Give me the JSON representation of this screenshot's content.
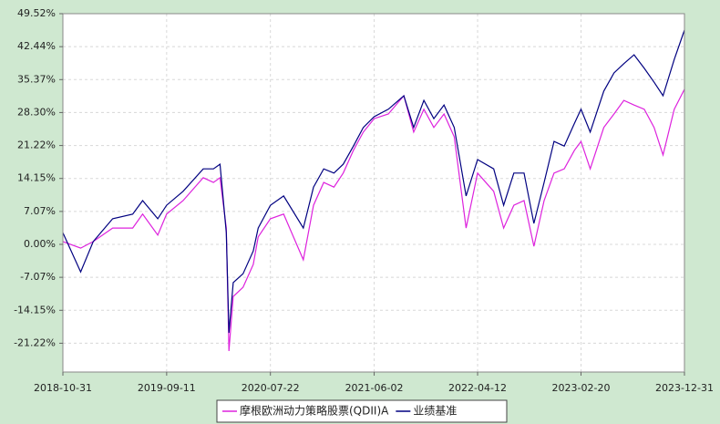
{
  "chart_data": {
    "type": "line",
    "x": [
      "2018-10-31",
      "2018-12-24",
      "2019-01-31",
      "2019-03-31",
      "2019-05-31",
      "2019-06-30",
      "2019-08-15",
      "2019-09-11",
      "2019-10-31",
      "2019-12-31",
      "2020-01-31",
      "2020-02-20",
      "2020-03-10",
      "2020-03-18",
      "2020-03-31",
      "2020-04-30",
      "2020-05-31",
      "2020-06-15",
      "2020-07-22",
      "2020-08-31",
      "2020-10-30",
      "2020-11-30",
      "2020-12-31",
      "2021-01-31",
      "2021-02-28",
      "2021-03-31",
      "2021-04-30",
      "2021-06-02",
      "2021-07-15",
      "2021-08-31",
      "2021-09-30",
      "2021-10-31",
      "2021-11-30",
      "2021-12-31",
      "2022-01-31",
      "2022-03-08",
      "2022-04-12",
      "2022-05-31",
      "2022-06-30",
      "2022-07-31",
      "2022-08-31",
      "2022-09-30",
      "2022-10-31",
      "2022-11-30",
      "2022-12-31",
      "2023-01-31",
      "2023-02-20",
      "2023-03-20",
      "2023-04-30",
      "2023-05-31",
      "2023-06-30",
      "2023-07-31",
      "2023-08-31",
      "2023-09-30",
      "2023-10-27",
      "2023-11-30",
      "2023-12-31"
    ],
    "series": [
      {
        "name": "摩根欧洲动力策略股票(QDII)A",
        "color": "#dd22dd",
        "values": [
          0.6,
          -0.8,
          0.6,
          3.5,
          3.5,
          6.5,
          2.0,
          6.5,
          9.4,
          14.3,
          13.3,
          14.3,
          3.5,
          -22.9,
          -11.2,
          -9.2,
          -4.3,
          1.6,
          5.5,
          6.5,
          -3.3,
          8.4,
          13.3,
          12.3,
          15.3,
          20.2,
          24.1,
          27.0,
          28.0,
          31.9,
          24.1,
          29.0,
          25.1,
          28.0,
          23.1,
          3.5,
          15.3,
          11.4,
          3.5,
          8.4,
          9.4,
          -0.4,
          9.4,
          15.3,
          16.2,
          20.2,
          22.1,
          16.2,
          25.1,
          28.0,
          30.9,
          29.9,
          29.0,
          25.1,
          19.2,
          29.0,
          33.3
        ]
      },
      {
        "name": "业绩基准",
        "color": "#000080",
        "values": [
          2.5,
          -5.9,
          0.6,
          5.5,
          6.5,
          9.4,
          5.5,
          8.4,
          11.4,
          16.2,
          16.2,
          17.2,
          2.5,
          -19.0,
          -8.2,
          -6.3,
          -1.4,
          3.5,
          8.4,
          10.4,
          3.5,
          12.3,
          16.2,
          15.3,
          17.2,
          21.1,
          25.1,
          27.4,
          29.0,
          31.9,
          25.1,
          30.9,
          27.0,
          29.9,
          25.1,
          10.4,
          18.2,
          16.2,
          8.4,
          15.3,
          15.3,
          4.5,
          13.3,
          22.1,
          21.1,
          26.0,
          29.0,
          24.1,
          32.9,
          36.8,
          38.8,
          40.7,
          37.8,
          34.8,
          31.9,
          39.7,
          46.0
        ]
      }
    ],
    "xlim": [
      "2018-10-31",
      "2023-12-31"
    ],
    "xticks": [
      "2018-10-31",
      "2019-09-11",
      "2020-07-22",
      "2021-06-02",
      "2022-04-12",
      "2023-02-20",
      "2023-12-31"
    ],
    "ylim": [
      -27.4,
      49.52
    ],
    "yticks": [
      {
        "value": -21.22,
        "label": "-21.22%"
      },
      {
        "value": -14.15,
        "label": "-14.15%"
      },
      {
        "value": -7.07,
        "label": "-7.07%"
      },
      {
        "value": 0,
        "label": "0.00%"
      },
      {
        "value": 7.07,
        "label": "7.07%"
      },
      {
        "value": 14.15,
        "label": "14.15%"
      },
      {
        "value": 21.22,
        "label": "21.22%"
      },
      {
        "value": 28.3,
        "label": "28.30%"
      },
      {
        "value": 35.37,
        "label": "35.37%"
      },
      {
        "value": 42.44,
        "label": "42.44%"
      },
      {
        "value": 49.52,
        "label": "49.52%"
      }
    ],
    "grid": true
  }
}
